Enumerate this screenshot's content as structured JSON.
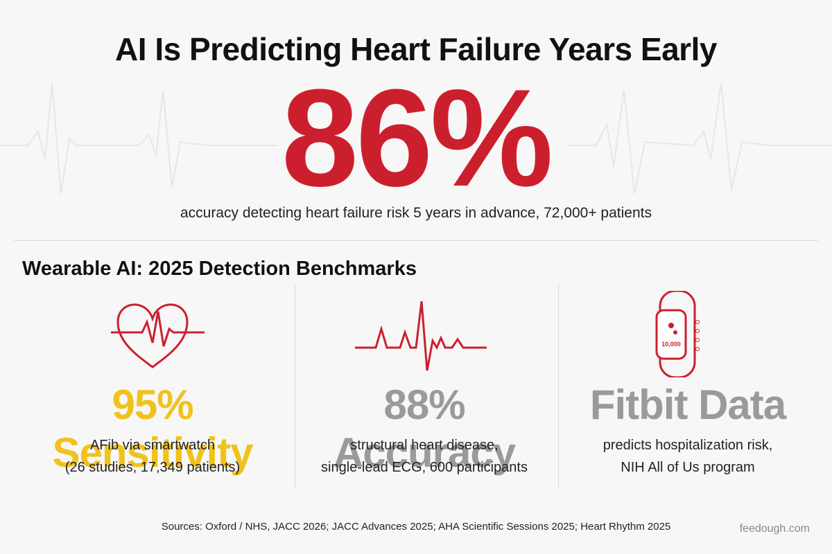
{
  "header": {
    "title": "AI Is Predicting Heart Failure Years Early"
  },
  "hero": {
    "stat": "86%",
    "caption": "accuracy detecting heart failure risk 5 years in advance, 72,000+ patients"
  },
  "section": {
    "title": "Wearable AI: 2025 Detection Benchmarks",
    "cards": [
      {
        "stat": "95% Sensitivity",
        "lines": [
          "AFib via smartwatch",
          "(26 studies, 17,349 patients)"
        ]
      },
      {
        "stat": "88% Accuracy",
        "lines": [
          "structural heart disease,",
          "single-lead ECG, 600 participants"
        ]
      },
      {
        "stat": "Fitbit Data",
        "lines": [
          "predicts hospitalization risk,",
          "NIH All of Us program"
        ],
        "icon_text": "10,000"
      }
    ]
  },
  "footer": {
    "sources": "Sources: Oxford / NHS, JACC 2026; JACC Advances 2025; AHA Scientific Sessions 2025; Heart Rhythm 2025",
    "brand": "feedough.com"
  }
}
